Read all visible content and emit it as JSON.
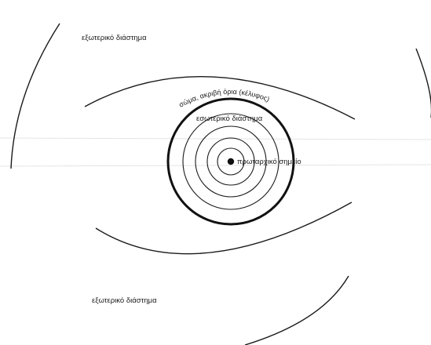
{
  "diagram": {
    "outer_space_top": "εξωτερικό διάστημα",
    "outer_space_bottom": "εξωτερικό διάστημα",
    "body_boundary": "σώμα, ακριβή όρια (κέλυφος)",
    "inner_space": "εσωτερικό διάστημα",
    "primordial_point": "πρωταρχικό σημείο"
  }
}
